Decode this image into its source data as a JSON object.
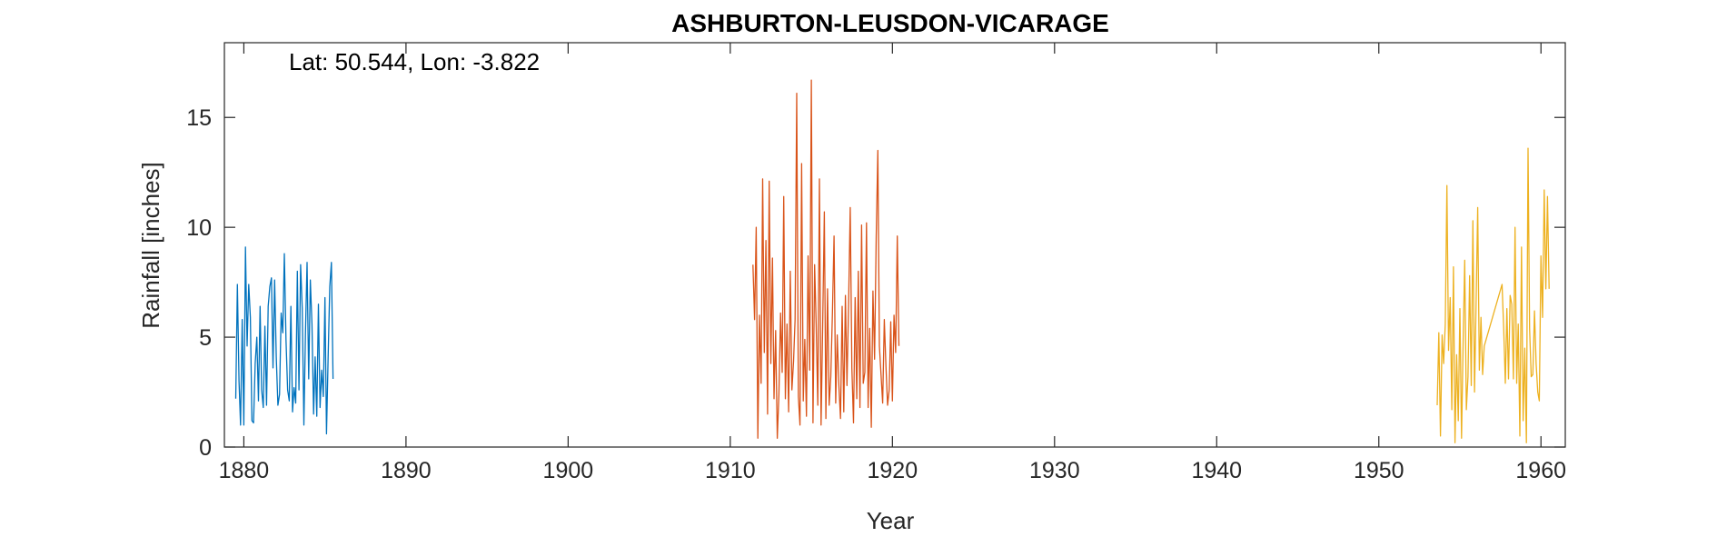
{
  "chart_data": {
    "type": "line",
    "title": "ASHBURTON-LEUSDON-VICARAGE",
    "annotation": "Lat: 50.544, Lon: -3.822",
    "xlabel": "Year",
    "ylabel": "Rainfall [inches]",
    "xlim": [
      1878.8,
      1961.5
    ],
    "ylim": [
      0,
      18.4
    ],
    "xticks": [
      1880,
      1890,
      1900,
      1910,
      1920,
      1930,
      1940,
      1950,
      1960
    ],
    "yticks": [
      0,
      5,
      10,
      15
    ],
    "grid": false,
    "series": [
      {
        "color": "#0072BD",
        "x": [
          1879.5,
          1879.6,
          1879.7,
          1879.8,
          1879.9,
          1880.0,
          1880.1,
          1880.2,
          1880.3,
          1880.4,
          1880.5,
          1880.6,
          1880.7,
          1880.8,
          1880.9,
          1881.0,
          1881.1,
          1881.2,
          1881.3,
          1881.4,
          1881.5,
          1881.6,
          1881.7,
          1881.8,
          1881.9,
          1882.0,
          1882.1,
          1882.2,
          1882.3,
          1882.4,
          1882.5,
          1882.6,
          1882.7,
          1882.8,
          1882.9,
          1883.0,
          1883.1,
          1883.2,
          1883.3,
          1883.4,
          1883.5,
          1883.6,
          1883.7,
          1883.8,
          1883.9,
          1884.0,
          1884.1,
          1884.2,
          1884.3,
          1884.4,
          1884.5,
          1884.6,
          1884.7,
          1884.8,
          1884.9,
          1885.0,
          1885.1,
          1885.2,
          1885.3,
          1885.4,
          1885.5
        ],
        "values": [
          2.2,
          7.4,
          3.0,
          1.0,
          5.8,
          1.0,
          9.1,
          4.6,
          7.4,
          5.9,
          1.2,
          1.1,
          3.8,
          5.0,
          2.1,
          6.4,
          2.6,
          1.8,
          5.5,
          1.9,
          6.4,
          7.3,
          7.7,
          3.6,
          7.6,
          4.1,
          1.9,
          2.4,
          6.1,
          5.2,
          8.8,
          4.9,
          2.6,
          2.1,
          6.4,
          1.6,
          2.7,
          2.0,
          8.0,
          2.6,
          8.3,
          6.3,
          1.0,
          5.1,
          8.4,
          3.1,
          7.6,
          5.6,
          1.5,
          4.1,
          1.4,
          6.5,
          1.8,
          3.5,
          2.3,
          6.8,
          0.6,
          4.1,
          7.3,
          8.4,
          3.1
        ]
      },
      {
        "color": "#D95319",
        "x": [
          1911.4,
          1911.5,
          1911.6,
          1911.7,
          1911.8,
          1911.9,
          1912.0,
          1912.1,
          1912.2,
          1912.3,
          1912.4,
          1912.5,
          1912.6,
          1912.7,
          1912.8,
          1912.9,
          1913.0,
          1913.1,
          1913.2,
          1913.3,
          1913.4,
          1913.5,
          1913.6,
          1913.7,
          1913.8,
          1913.9,
          1914.0,
          1914.1,
          1914.2,
          1914.3,
          1914.4,
          1914.5,
          1914.6,
          1914.7,
          1914.8,
          1914.9,
          1915.0,
          1915.1,
          1915.2,
          1915.3,
          1915.4,
          1915.5,
          1915.6,
          1915.7,
          1915.8,
          1915.9,
          1916.0,
          1916.1,
          1916.2,
          1916.3,
          1916.4,
          1916.5,
          1916.6,
          1916.7,
          1916.8,
          1916.9,
          1917.0,
          1917.1,
          1917.2,
          1917.3,
          1917.4,
          1917.5,
          1917.6,
          1917.7,
          1917.8,
          1917.9,
          1918.0,
          1918.1,
          1918.2,
          1918.3,
          1918.4,
          1918.5,
          1918.6,
          1918.7,
          1918.8,
          1918.9,
          1919.0,
          1919.1,
          1919.2,
          1919.3,
          1919.4,
          1919.5,
          1919.6,
          1919.7,
          1919.8,
          1919.9,
          1920.0,
          1920.1,
          1920.2,
          1920.3,
          1920.4
        ],
        "values": [
          8.3,
          5.8,
          10.0,
          0.4,
          6.0,
          2.9,
          12.2,
          4.3,
          9.4,
          1.5,
          12.1,
          3.8,
          8.6,
          2.2,
          5.3,
          0.4,
          2.4,
          6.1,
          3.4,
          11.4,
          2.2,
          5.6,
          1.6,
          8.0,
          2.6,
          3.9,
          5.8,
          16.1,
          2.3,
          1.0,
          12.9,
          2.1,
          4.9,
          1.4,
          8.7,
          3.5,
          16.7,
          1.1,
          8.3,
          5.6,
          1.9,
          12.2,
          1.0,
          5.6,
          10.7,
          1.3,
          7.2,
          1.9,
          3.2,
          6.1,
          9.6,
          2.0,
          5.1,
          2.8,
          1.3,
          6.4,
          1.6,
          6.9,
          2.8,
          6.5,
          10.9,
          3.6,
          1.1,
          6.8,
          2.2,
          8.0,
          1.8,
          10.1,
          2.9,
          3.4,
          10.2,
          1.8,
          5.4,
          0.9,
          7.1,
          4.0,
          9.6,
          13.5,
          4.6,
          3.3,
          2.0,
          5.8,
          3.7,
          1.9,
          2.6,
          5.7,
          2.1,
          6.0,
          4.3,
          9.6,
          4.6
        ]
      },
      {
        "color": "#EDB120",
        "x": [
          1953.6,
          1953.7,
          1953.8,
          1953.9,
          1954.0,
          1954.1,
          1954.2,
          1954.3,
          1954.4,
          1954.5,
          1954.6,
          1954.7,
          1954.8,
          1954.9,
          1955.0,
          1955.1,
          1955.2,
          1955.3,
          1955.4,
          1955.5,
          1955.6,
          1955.7,
          1955.8,
          1955.9,
          1956.0,
          1956.1,
          1956.2,
          1956.3,
          1956.4,
          1956.5,
          1957.6,
          1957.7,
          1957.8,
          1957.9,
          1958.0,
          1958.1,
          1958.2,
          1958.3,
          1958.4,
          1958.5,
          1958.6,
          1958.7,
          1958.8,
          1958.9,
          1959.0,
          1959.1,
          1959.2,
          1959.3,
          1959.4,
          1959.5,
          1959.6,
          1959.7,
          1959.8,
          1959.9,
          1960.0,
          1960.1,
          1960.2,
          1960.3,
          1960.4,
          1960.5
        ],
        "values": [
          1.9,
          5.2,
          0.5,
          5.1,
          3.8,
          5.6,
          11.9,
          4.4,
          6.8,
          1.7,
          8.2,
          0.2,
          4.2,
          1.2,
          6.3,
          0.4,
          4.9,
          8.5,
          1.7,
          3.2,
          7.8,
          2.8,
          10.3,
          2.5,
          6.5,
          10.9,
          3.5,
          5.9,
          3.3,
          4.6,
          7.4,
          5.4,
          2.9,
          6.3,
          3.1,
          6.9,
          6.5,
          3.1,
          10.0,
          2.9,
          5.6,
          0.5,
          9.1,
          1.2,
          4.5,
          0.2,
          13.6,
          5.4,
          3.2,
          3.3,
          6.2,
          3.8,
          2.5,
          2.1,
          8.7,
          5.9,
          11.7,
          7.2,
          11.4,
          7.2
        ]
      }
    ]
  }
}
